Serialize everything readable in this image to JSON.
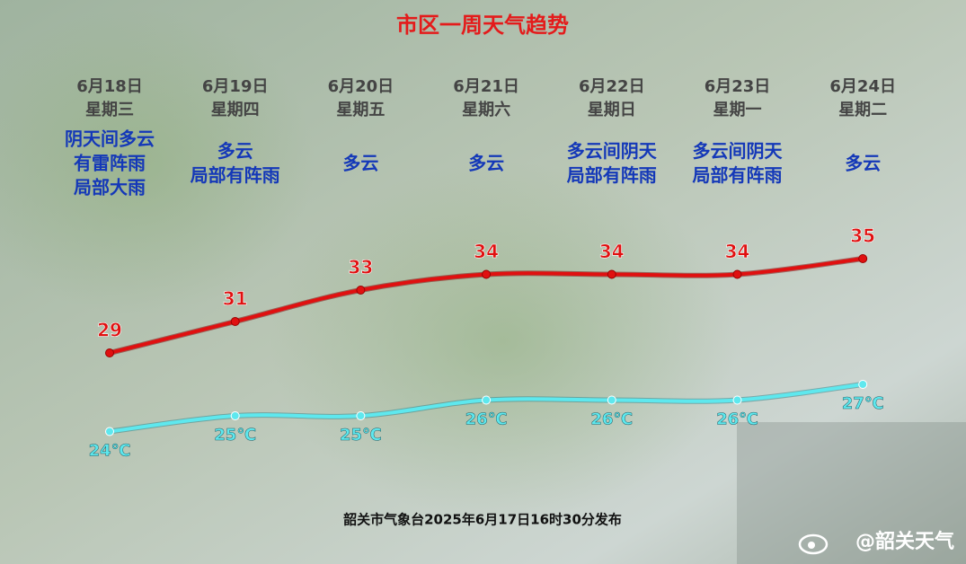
{
  "chart_data": {
    "type": "line",
    "title": "市区一周天气趋势",
    "categories": [
      "6月18日",
      "6月19日",
      "6月20日",
      "6月21日",
      "6月22日",
      "6月23日",
      "6月24日"
    ],
    "weekdays": [
      "星期三",
      "星期四",
      "星期五",
      "星期六",
      "星期日",
      "星期一",
      "星期二"
    ],
    "weather": [
      [
        "阴天间多云",
        "有雷阵雨",
        "局部大雨"
      ],
      [
        "多云",
        "局部有阵雨"
      ],
      [
        "多云"
      ],
      [
        "多云"
      ],
      [
        "多云间阴天",
        "局部有阵雨"
      ],
      [
        "多云间阴天",
        "局部有阵雨"
      ],
      [
        "多云"
      ]
    ],
    "series": [
      {
        "color": "#e01010",
        "values": [
          29,
          31,
          33,
          34,
          34,
          34,
          35
        ]
      },
      {
        "color": "#5ee8ee",
        "values": [
          24,
          25,
          25,
          26,
          26,
          26,
          27
        ],
        "value_labels": [
          "24℃",
          "25℃",
          "25℃",
          "26℃",
          "26℃",
          "26℃",
          "27℃"
        ]
      }
    ],
    "footer": "韶关市气象台2025年6月17日16时30分发布",
    "watermark": "@韶关天气"
  }
}
